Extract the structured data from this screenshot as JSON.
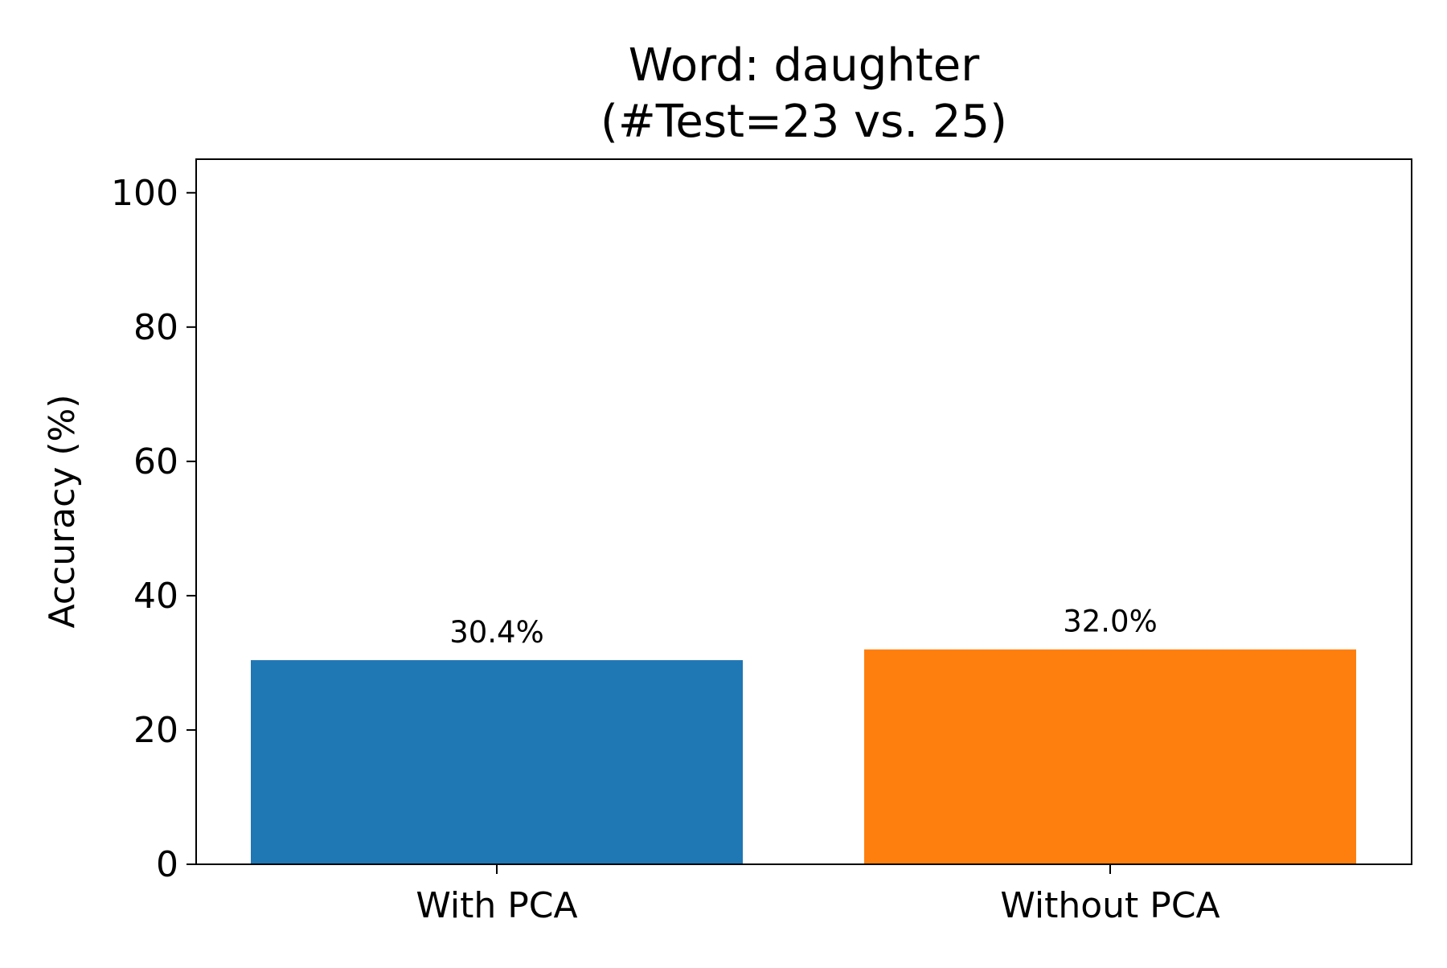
{
  "chart_data": {
    "type": "bar",
    "title_line1": "Word: daughter",
    "title_line2": "(#Test=23 vs. 25)",
    "xlabel": "",
    "ylabel": "Accuracy (%)",
    "categories": [
      "With PCA",
      "Without PCA"
    ],
    "values": [
      30.4,
      32.0
    ],
    "value_labels": [
      "30.4%",
      "32.0%"
    ],
    "colors": [
      "#1f77b4",
      "#ff7f0e"
    ],
    "ylim": [
      0,
      105
    ],
    "yticks": [
      0,
      20,
      40,
      60,
      80,
      100
    ],
    "grid": false,
    "legend": "none"
  }
}
